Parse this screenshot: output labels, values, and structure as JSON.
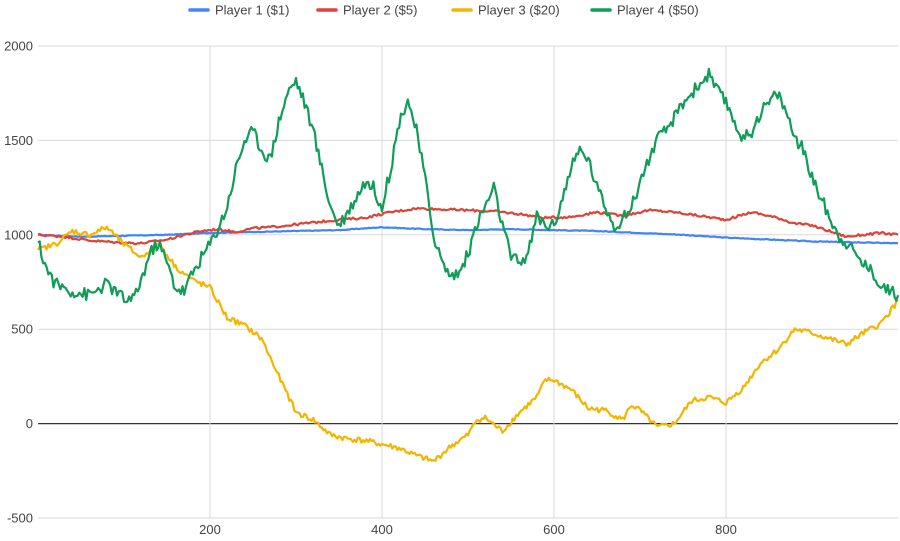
{
  "chart_data": {
    "type": "line",
    "xlim": [
      0,
      1000
    ],
    "ylim": [
      -500,
      2000
    ],
    "x_ticks": [
      200,
      400,
      600,
      800
    ],
    "y_ticks": [
      -500,
      0,
      500,
      1000,
      1500,
      2000
    ],
    "grid": true,
    "legend_position": "top",
    "series": [
      {
        "name": "Player 1 ($1)",
        "color": "#4285f4",
        "points": [
          [
            0,
            1000
          ],
          [
            50,
            990
          ],
          [
            100,
            995
          ],
          [
            150,
            1000
          ],
          [
            200,
            1010
          ],
          [
            250,
            1015
          ],
          [
            300,
            1020
          ],
          [
            350,
            1025
          ],
          [
            400,
            1040
          ],
          [
            450,
            1030
          ],
          [
            500,
            1025
          ],
          [
            550,
            1030
          ],
          [
            600,
            1025
          ],
          [
            650,
            1020
          ],
          [
            700,
            1010
          ],
          [
            750,
            1000
          ],
          [
            800,
            985
          ],
          [
            850,
            975
          ],
          [
            900,
            965
          ],
          [
            950,
            960
          ],
          [
            1000,
            955
          ]
        ]
      },
      {
        "name": "Player 2 ($5)",
        "color": "#db4437",
        "points": [
          [
            0,
            1000
          ],
          [
            30,
            990
          ],
          [
            60,
            970
          ],
          [
            90,
            960
          ],
          [
            120,
            955
          ],
          [
            150,
            975
          ],
          [
            170,
            1000
          ],
          [
            190,
            1020
          ],
          [
            210,
            1030
          ],
          [
            230,
            1015
          ],
          [
            250,
            1035
          ],
          [
            270,
            1040
          ],
          [
            290,
            1050
          ],
          [
            310,
            1060
          ],
          [
            330,
            1070
          ],
          [
            350,
            1080
          ],
          [
            380,
            1090
          ],
          [
            410,
            1120
          ],
          [
            440,
            1140
          ],
          [
            470,
            1135
          ],
          [
            500,
            1130
          ],
          [
            530,
            1125
          ],
          [
            560,
            1110
          ],
          [
            590,
            1090
          ],
          [
            620,
            1095
          ],
          [
            650,
            1120
          ],
          [
            680,
            1100
          ],
          [
            710,
            1130
          ],
          [
            740,
            1120
          ],
          [
            770,
            1100
          ],
          [
            800,
            1080
          ],
          [
            830,
            1120
          ],
          [
            860,
            1090
          ],
          [
            880,
            1060
          ],
          [
            900,
            1050
          ],
          [
            920,
            1020
          ],
          [
            940,
            990
          ],
          [
            960,
            1000
          ],
          [
            980,
            1010
          ],
          [
            1000,
            1000
          ]
        ]
      },
      {
        "name": "Player 3 ($20)",
        "color": "#f4b400",
        "points": [
          [
            0,
            920
          ],
          [
            20,
            950
          ],
          [
            40,
            1020
          ],
          [
            60,
            1000
          ],
          [
            80,
            1040
          ],
          [
            100,
            950
          ],
          [
            120,
            880
          ],
          [
            140,
            960
          ],
          [
            160,
            830
          ],
          [
            180,
            760
          ],
          [
            200,
            720
          ],
          [
            220,
            560
          ],
          [
            240,
            520
          ],
          [
            260,
            450
          ],
          [
            280,
            250
          ],
          [
            300,
            60
          ],
          [
            320,
            20
          ],
          [
            340,
            -60
          ],
          [
            360,
            -80
          ],
          [
            380,
            -90
          ],
          [
            400,
            -110
          ],
          [
            420,
            -130
          ],
          [
            440,
            -170
          ],
          [
            460,
            -200
          ],
          [
            480,
            -120
          ],
          [
            500,
            -60
          ],
          [
            510,
            20
          ],
          [
            520,
            30
          ],
          [
            540,
            -40
          ],
          [
            560,
            60
          ],
          [
            580,
            140
          ],
          [
            590,
            230
          ],
          [
            600,
            230
          ],
          [
            620,
            180
          ],
          [
            640,
            80
          ],
          [
            660,
            70
          ],
          [
            680,
            20
          ],
          [
            690,
            100
          ],
          [
            700,
            70
          ],
          [
            720,
            -20
          ],
          [
            740,
            0
          ],
          [
            760,
            120
          ],
          [
            780,
            140
          ],
          [
            800,
            110
          ],
          [
            820,
            190
          ],
          [
            840,
            320
          ],
          [
            860,
            390
          ],
          [
            880,
            500
          ],
          [
            900,
            480
          ],
          [
            920,
            450
          ],
          [
            940,
            420
          ],
          [
            960,
            480
          ],
          [
            980,
            530
          ],
          [
            1000,
            650
          ]
        ]
      },
      {
        "name": "Player 4 ($50)",
        "color": "#0f9d58",
        "points": [
          [
            0,
            960
          ],
          [
            10,
            820
          ],
          [
            20,
            740
          ],
          [
            40,
            700
          ],
          [
            60,
            680
          ],
          [
            80,
            740
          ],
          [
            100,
            660
          ],
          [
            110,
            650
          ],
          [
            120,
            760
          ],
          [
            130,
            900
          ],
          [
            140,
            960
          ],
          [
            150,
            850
          ],
          [
            160,
            720
          ],
          [
            170,
            700
          ],
          [
            180,
            800
          ],
          [
            190,
            880
          ],
          [
            200,
            950
          ],
          [
            210,
            1040
          ],
          [
            220,
            1150
          ],
          [
            230,
            1350
          ],
          [
            240,
            1500
          ],
          [
            250,
            1550
          ],
          [
            260,
            1450
          ],
          [
            270,
            1400
          ],
          [
            280,
            1600
          ],
          [
            290,
            1750
          ],
          [
            300,
            1820
          ],
          [
            310,
            1700
          ],
          [
            320,
            1550
          ],
          [
            330,
            1350
          ],
          [
            340,
            1150
          ],
          [
            350,
            1050
          ],
          [
            360,
            1120
          ],
          [
            370,
            1200
          ],
          [
            380,
            1280
          ],
          [
            390,
            1250
          ],
          [
            400,
            1150
          ],
          [
            410,
            1350
          ],
          [
            420,
            1600
          ],
          [
            430,
            1720
          ],
          [
            440,
            1550
          ],
          [
            450,
            1300
          ],
          [
            460,
            1000
          ],
          [
            470,
            850
          ],
          [
            480,
            780
          ],
          [
            490,
            800
          ],
          [
            500,
            900
          ],
          [
            510,
            1050
          ],
          [
            520,
            1150
          ],
          [
            530,
            1250
          ],
          [
            540,
            1050
          ],
          [
            550,
            880
          ],
          [
            560,
            850
          ],
          [
            570,
            900
          ],
          [
            580,
            1100
          ],
          [
            590,
            1050
          ],
          [
            600,
            1050
          ],
          [
            610,
            1200
          ],
          [
            620,
            1350
          ],
          [
            630,
            1450
          ],
          [
            640,
            1400
          ],
          [
            650,
            1250
          ],
          [
            660,
            1150
          ],
          [
            670,
            1050
          ],
          [
            680,
            1080
          ],
          [
            690,
            1150
          ],
          [
            700,
            1280
          ],
          [
            710,
            1400
          ],
          [
            720,
            1500
          ],
          [
            730,
            1550
          ],
          [
            740,
            1620
          ],
          [
            750,
            1700
          ],
          [
            760,
            1750
          ],
          [
            770,
            1800
          ],
          [
            780,
            1850
          ],
          [
            790,
            1760
          ],
          [
            800,
            1700
          ],
          [
            810,
            1600
          ],
          [
            820,
            1500
          ],
          [
            830,
            1550
          ],
          [
            840,
            1650
          ],
          [
            850,
            1700
          ],
          [
            860,
            1750
          ],
          [
            870,
            1650
          ],
          [
            880,
            1520
          ],
          [
            890,
            1450
          ],
          [
            900,
            1300
          ],
          [
            910,
            1200
          ],
          [
            920,
            1100
          ],
          [
            930,
            1000
          ],
          [
            940,
            960
          ],
          [
            950,
            900
          ],
          [
            960,
            850
          ],
          [
            970,
            800
          ],
          [
            980,
            740
          ],
          [
            990,
            700
          ],
          [
            1000,
            680
          ]
        ]
      }
    ]
  }
}
